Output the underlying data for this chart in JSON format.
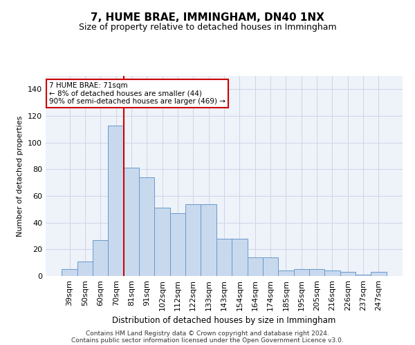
{
  "title": "7, HUME BRAE, IMMINGHAM, DN40 1NX",
  "subtitle": "Size of property relative to detached houses in Immingham",
  "xlabel": "Distribution of detached houses by size in Immingham",
  "ylabel": "Number of detached properties",
  "categories": [
    "39sqm",
    "50sqm",
    "60sqm",
    "70sqm",
    "81sqm",
    "91sqm",
    "102sqm",
    "112sqm",
    "122sqm",
    "133sqm",
    "143sqm",
    "154sqm",
    "164sqm",
    "174sqm",
    "185sqm",
    "195sqm",
    "205sqm",
    "216sqm",
    "226sqm",
    "237sqm",
    "247sqm"
  ],
  "values": [
    5,
    11,
    27,
    113,
    81,
    74,
    51,
    47,
    54,
    54,
    28,
    28,
    14,
    14,
    4,
    5,
    5,
    4,
    3,
    1,
    3
  ],
  "bar_color": "#c8d9ee",
  "bar_edge_color": "#6699cc",
  "grid_color": "#ccd5e8",
  "background_color": "#eef2f9",
  "vline_color": "#cc0000",
  "annotation_text": "7 HUME BRAE: 71sqm\n← 8% of detached houses are smaller (44)\n90% of semi-detached houses are larger (469) →",
  "annotation_box_color": "#ffffff",
  "annotation_box_edge_color": "#cc0000",
  "footnote1": "Contains HM Land Registry data © Crown copyright and database right 2024.",
  "footnote2": "Contains public sector information licensed under the Open Government Licence v3.0.",
  "ylim": [
    0,
    150
  ],
  "yticks": [
    0,
    20,
    40,
    60,
    80,
    100,
    120,
    140
  ],
  "title_fontsize": 11,
  "subtitle_fontsize": 9
}
